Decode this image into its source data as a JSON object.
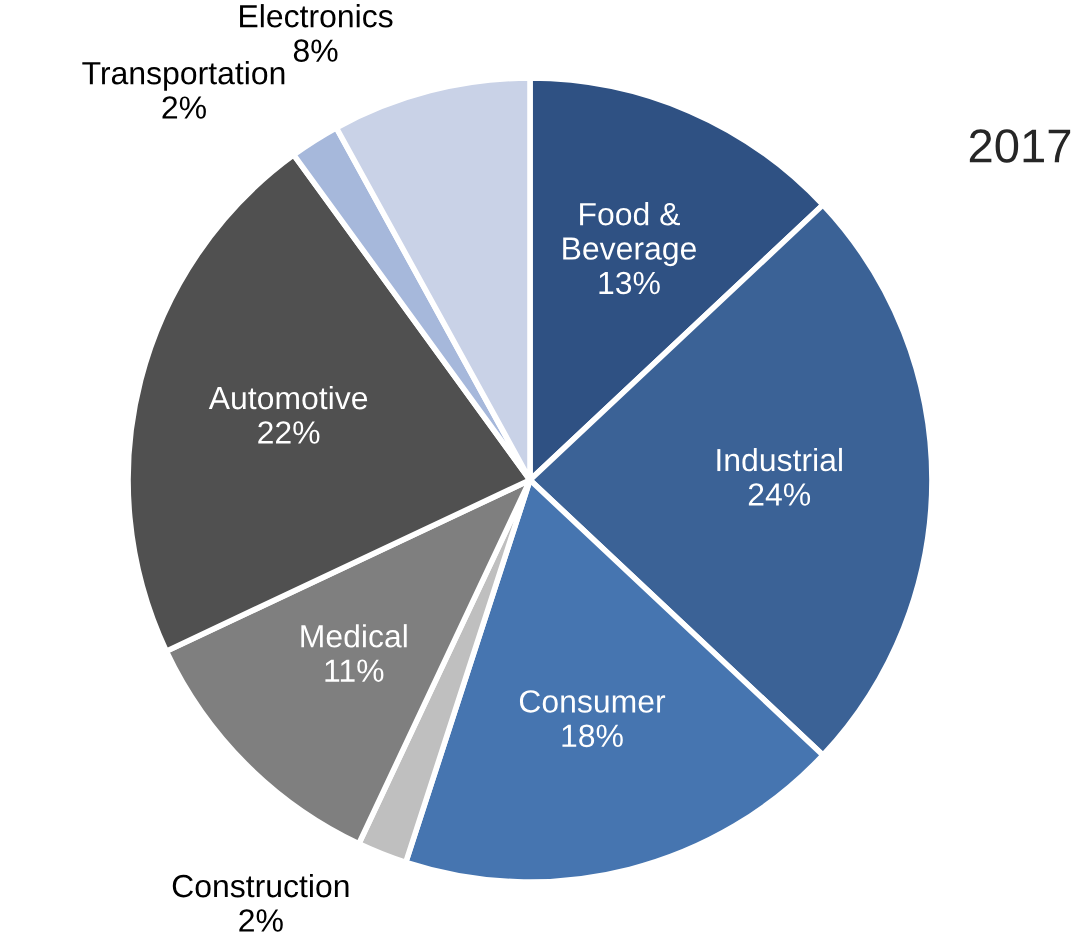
{
  "chart_data": {
    "type": "pie",
    "title": "2017",
    "categories": [
      "Food &\nBeverage",
      "Industrial",
      "Consumer",
      "Construction",
      "Medical",
      "Automotive",
      "Transportation",
      "Electronics"
    ],
    "values": [
      13,
      24,
      18,
      2,
      11,
      22,
      2,
      8
    ],
    "value_labels": [
      "13%",
      "24%",
      "18%",
      "2%",
      "11%",
      "22%",
      "2%",
      "8%"
    ],
    "colors": [
      "#2f5183",
      "#3b6296",
      "#4675b0",
      "#bfbfbf",
      "#7f7f7f",
      "#505050",
      "#a6b8db",
      "#c9d2e7"
    ],
    "legend": false
  }
}
